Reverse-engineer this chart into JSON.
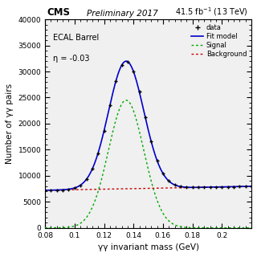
{
  "title_cms": "CMS",
  "title_prelim": "Preliminary 2017",
  "title_lumi": "41.5 fb$^{-1}$ (13 TeV)",
  "xlabel": "γγ invariant mass (GeV)",
  "ylabel": "Number of γγ pairs",
  "annotation_line1": "ECAL Barrel",
  "annotation_line2": "η = -0.03",
  "legend_data": "data",
  "legend_fit": "Fit model",
  "legend_signal": "Signal",
  "legend_background": "Background",
  "xlim": [
    0.08,
    0.22
  ],
  "ylim": [
    0,
    40000
  ],
  "x_ticks": [
    0.08,
    0.1,
    0.12,
    0.14,
    0.16,
    0.18,
    0.2
  ],
  "y_ticks": [
    0,
    5000,
    10000,
    15000,
    20000,
    25000,
    30000,
    35000,
    40000
  ],
  "fit_color": "#0000cc",
  "signal_color": "#00aa00",
  "background_color_line": "#cc0000",
  "data_color": "black",
  "pi0_mass": 0.135,
  "pi0_sigma": 0.012,
  "signal_amplitude": 24500,
  "bg_a": 7200,
  "bg_b": 0.04,
  "bg_slope": 18000,
  "background_white": "#ffffff"
}
